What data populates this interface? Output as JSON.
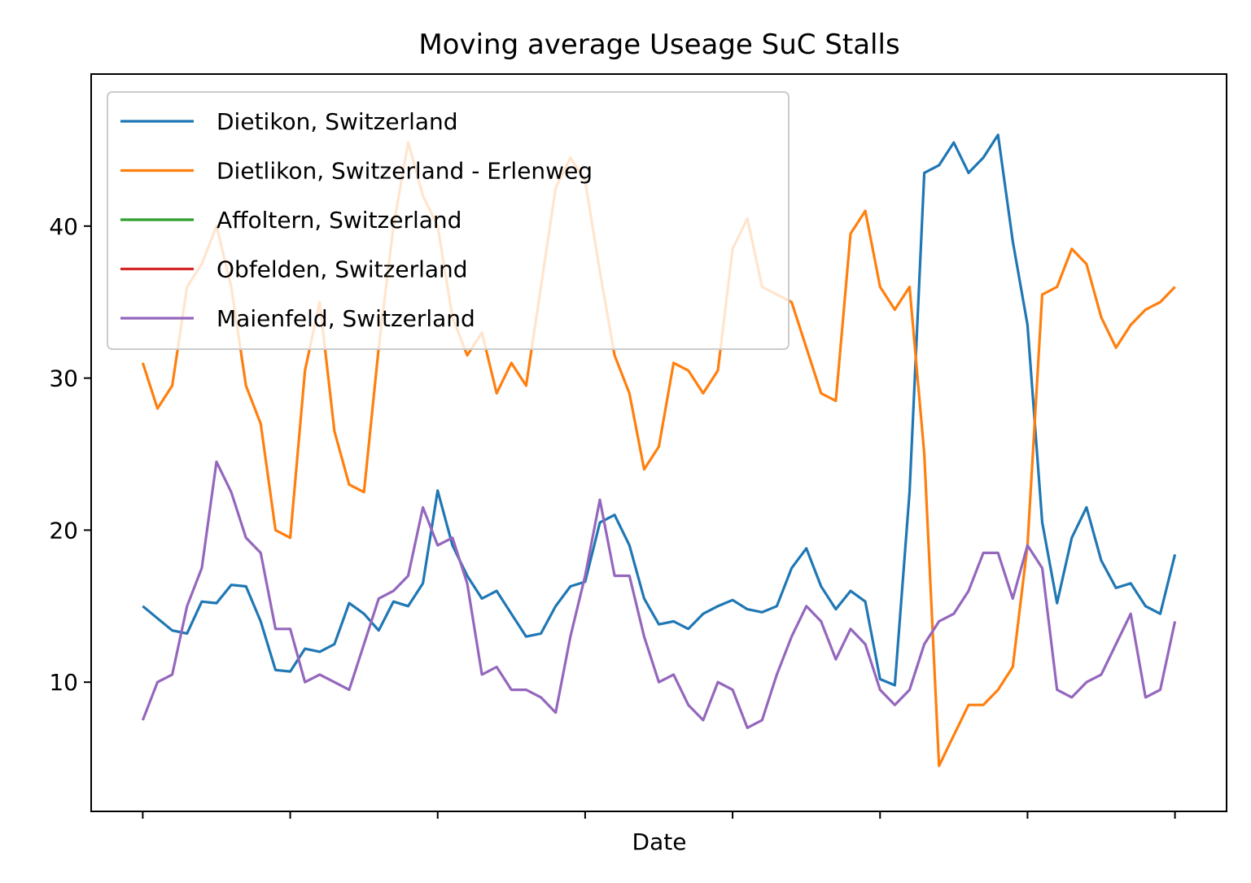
{
  "chart_data": {
    "type": "line",
    "title": "Moving average Useage SuC Stalls",
    "xlabel": "Date",
    "ylabel": "",
    "xlim": [
      -0.35,
      7.35
    ],
    "ylim": [
      1.5,
      50
    ],
    "x_ticks": [
      0,
      1,
      2,
      3,
      4,
      5,
      6,
      7
    ],
    "x_tick_labels": [
      "",
      "",
      "",
      "",
      "",
      "",
      "",
      ""
    ],
    "y_ticks": [
      10,
      20,
      30,
      40
    ],
    "y_tick_labels": [
      "10",
      "20",
      "30",
      "40"
    ],
    "grid": false,
    "legend_position": "top-left",
    "series": [
      {
        "name": "Dietikon, Switzerland",
        "color": "#1f77b4",
        "x": [
          0,
          0.1,
          0.2,
          0.3,
          0.4,
          0.5,
          0.6,
          0.7,
          0.8,
          0.9,
          1.0,
          1.1,
          1.2,
          1.3,
          1.4,
          1.5,
          1.6,
          1.7,
          1.8,
          1.9,
          2.0,
          2.1,
          2.2,
          2.3,
          2.4,
          2.5,
          2.6,
          2.7,
          2.8,
          2.9,
          3.0,
          3.1,
          3.2,
          3.3,
          3.4,
          3.5,
          3.6,
          3.7,
          3.8,
          3.9,
          4.0,
          4.1,
          4.2,
          4.3,
          4.4,
          4.5,
          4.6,
          4.7,
          4.8,
          4.9,
          5.0,
          5.1,
          5.2,
          5.3,
          5.4,
          5.5,
          5.6,
          5.7,
          5.8,
          5.9,
          6.0,
          6.1,
          6.2,
          6.3,
          6.4,
          6.5,
          6.6,
          6.7,
          6.8,
          6.9,
          7.0
        ],
        "values": [
          15.0,
          14.2,
          13.4,
          13.2,
          15.3,
          15.2,
          16.4,
          16.3,
          14.0,
          10.8,
          10.7,
          12.2,
          12.0,
          12.5,
          15.2,
          14.5,
          13.4,
          15.3,
          15.0,
          16.5,
          22.6,
          19.0,
          17.0,
          15.5,
          16.0,
          14.5,
          13.0,
          13.2,
          15.0,
          16.3,
          16.6,
          20.5,
          21.0,
          19.0,
          15.5,
          13.8,
          14.0,
          13.5,
          14.5,
          15.0,
          15.4,
          14.8,
          14.6,
          15.0,
          17.5,
          18.8,
          16.3,
          14.8,
          16.0,
          15.3,
          10.2,
          9.8,
          22.5,
          43.5,
          44.0,
          45.5,
          43.5,
          44.5,
          46.0,
          39.0,
          33.5,
          20.5,
          15.2,
          19.5,
          21.5,
          18.0,
          16.2,
          16.5,
          15.0,
          14.5,
          18.4
        ]
      },
      {
        "name": "Dietlikon, Switzerland - Erlenweg",
        "color": "#ff7f0e",
        "x": [
          0,
          0.1,
          0.2,
          0.3,
          0.4,
          0.5,
          0.6,
          0.7,
          0.8,
          0.9,
          1.0,
          1.1,
          1.2,
          1.3,
          1.4,
          1.5,
          1.6,
          1.7,
          1.8,
          1.9,
          2.0,
          2.1,
          2.2,
          2.3,
          2.4,
          2.5,
          2.6,
          2.7,
          2.8,
          2.9,
          3.0,
          3.1,
          3.2,
          3.3,
          3.4,
          3.5,
          3.6,
          3.7,
          3.8,
          3.9,
          4.0,
          4.1,
          4.2,
          4.3,
          4.4,
          4.5,
          4.6,
          4.7,
          4.8,
          4.9,
          5.0,
          5.1,
          5.2,
          5.3,
          5.4,
          5.5,
          5.6,
          5.7,
          5.8,
          5.9,
          6.0,
          6.1,
          6.2,
          6.3,
          6.4,
          6.5,
          6.6,
          6.7,
          6.8,
          6.9,
          7.0
        ],
        "values": [
          31.0,
          28.0,
          29.5,
          36.0,
          37.5,
          40.0,
          36.0,
          29.5,
          27.0,
          20.0,
          19.5,
          30.5,
          35.0,
          26.5,
          23.0,
          22.5,
          32.0,
          40.0,
          45.5,
          42.0,
          40.0,
          34.0,
          31.5,
          33.0,
          29.0,
          31.0,
          29.5,
          36.0,
          42.5,
          44.5,
          43.0,
          37.0,
          31.5,
          29.0,
          24.0,
          25.5,
          31.0,
          30.5,
          29.0,
          30.5,
          38.5,
          40.5,
          36.0,
          35.5,
          35.0,
          32.0,
          29.0,
          28.5,
          39.5,
          41.0,
          36.0,
          34.5,
          36.0,
          25.0,
          4.5,
          6.5,
          8.5,
          8.5,
          9.5,
          11.0,
          19.0,
          35.5,
          36.0,
          38.5,
          37.5,
          34.0,
          32.0,
          33.5,
          34.5,
          35.0,
          36.0
        ]
      },
      {
        "name": "Affoltern, Switzerland",
        "color": "#2ca02c",
        "x": [],
        "values": []
      },
      {
        "name": "Obfelden, Switzerland",
        "color": "#d62728",
        "x": [],
        "values": []
      },
      {
        "name": "Maienfeld, Switzerland",
        "color": "#9467bd",
        "x": [
          0,
          0.1,
          0.2,
          0.3,
          0.4,
          0.5,
          0.6,
          0.7,
          0.8,
          0.9,
          1.0,
          1.1,
          1.2,
          1.3,
          1.4,
          1.5,
          1.6,
          1.7,
          1.8,
          1.9,
          2.0,
          2.1,
          2.2,
          2.3,
          2.4,
          2.5,
          2.6,
          2.7,
          2.8,
          2.9,
          3.0,
          3.1,
          3.2,
          3.3,
          3.4,
          3.5,
          3.6,
          3.7,
          3.8,
          3.9,
          4.0,
          4.1,
          4.2,
          4.3,
          4.4,
          4.5,
          4.6,
          4.7,
          4.8,
          4.9,
          5.0,
          5.1,
          5.2,
          5.3,
          5.4,
          5.5,
          5.6,
          5.7,
          5.8,
          5.9,
          6.0,
          6.1,
          6.2,
          6.3,
          6.4,
          6.5,
          6.6,
          6.7,
          6.8,
          6.9,
          7.0
        ],
        "values": [
          7.5,
          10.0,
          10.5,
          15.0,
          17.5,
          24.5,
          22.5,
          19.5,
          18.5,
          13.5,
          13.5,
          10.0,
          10.5,
          10.0,
          9.5,
          12.5,
          15.5,
          16.0,
          17.0,
          21.5,
          19.0,
          19.5,
          16.5,
          10.5,
          11.0,
          9.5,
          9.5,
          9.0,
          8.0,
          13.0,
          17.0,
          22.0,
          17.0,
          17.0,
          13.0,
          10.0,
          10.5,
          8.5,
          7.5,
          10.0,
          9.5,
          7.0,
          7.5,
          10.5,
          13.0,
          15.0,
          14.0,
          11.5,
          13.5,
          12.5,
          9.5,
          8.5,
          9.5,
          12.5,
          14.0,
          14.5,
          16.0,
          18.5,
          18.5,
          15.5,
          19.0,
          17.5,
          9.5,
          9.0,
          10.0,
          10.5,
          12.5,
          14.5,
          9.0,
          9.5,
          14.0
        ]
      }
    ]
  }
}
